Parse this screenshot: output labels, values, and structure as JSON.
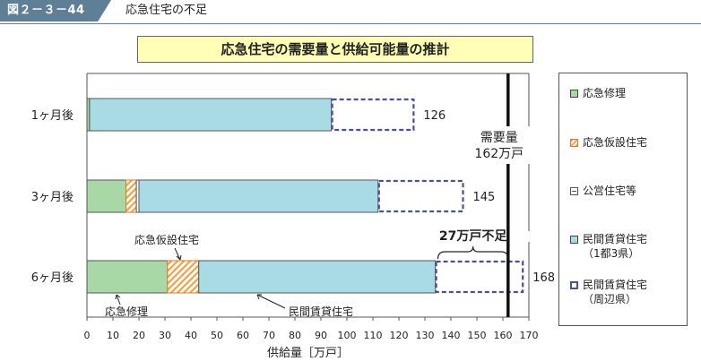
{
  "header": {
    "figure_number": "図２－３－44",
    "title": "応急住宅の不足"
  },
  "chart_data": {
    "type": "bar",
    "orientation": "horizontal",
    "stacked": true,
    "title": "応急住宅の需要量と供給可能量の推計",
    "categories": [
      "1ヶ月後",
      "3ヶ月後",
      "6ヶ月後"
    ],
    "series": [
      {
        "name": "応急修理",
        "values": [
          1,
          15,
          31
        ],
        "color": "#a8d8a6"
      },
      {
        "name": "応急仮設住宅",
        "values": [
          0,
          4,
          12
        ],
        "color": "#f0a045"
      },
      {
        "name": "公営住宅等",
        "values": [
          0,
          1,
          0
        ],
        "color": "#ffffff"
      },
      {
        "name": "民間賃貸住宅（1都3県）",
        "values": [
          93,
          92,
          91
        ],
        "color": "#a8dbe3"
      },
      {
        "name": "民間賃貸住宅（周辺県）",
        "values": [
          32,
          33,
          34
        ],
        "color": "#4b4f9a"
      }
    ],
    "totals": [
      "126",
      "145",
      "168"
    ],
    "xlabel": "供給量［万戸］",
    "xlim": [
      0,
      170
    ],
    "xticks": [
      0,
      10,
      20,
      30,
      40,
      50,
      60,
      70,
      80,
      90,
      100,
      110,
      120,
      130,
      140,
      150,
      160,
      170
    ],
    "demand": {
      "value": 162,
      "label_line1": "需要量",
      "label_line2": "162万戸"
    },
    "shortage": {
      "label": "27万戸不足",
      "from": 135,
      "to": 162
    },
    "annotations": [
      {
        "text": "応急仮設住宅",
        "target": "応急仮設住宅",
        "bar": 2
      },
      {
        "text": "応急修理",
        "target": "応急修理",
        "bar": 2
      },
      {
        "text": "民間賃貸住宅",
        "target": "民間賃貸住宅（1都3県）",
        "bar": 2
      }
    ],
    "legend_position": "right",
    "grid": false
  },
  "legend": {
    "items": [
      {
        "label": "応急修理",
        "sub": ""
      },
      {
        "label": "応急仮設住宅",
        "sub": ""
      },
      {
        "label": "公営住宅等",
        "sub": ""
      },
      {
        "label": "民間賃貸住宅",
        "sub": "（1都3県）"
      },
      {
        "label": "民間賃貸住宅",
        "sub": "（周辺県）"
      }
    ]
  }
}
